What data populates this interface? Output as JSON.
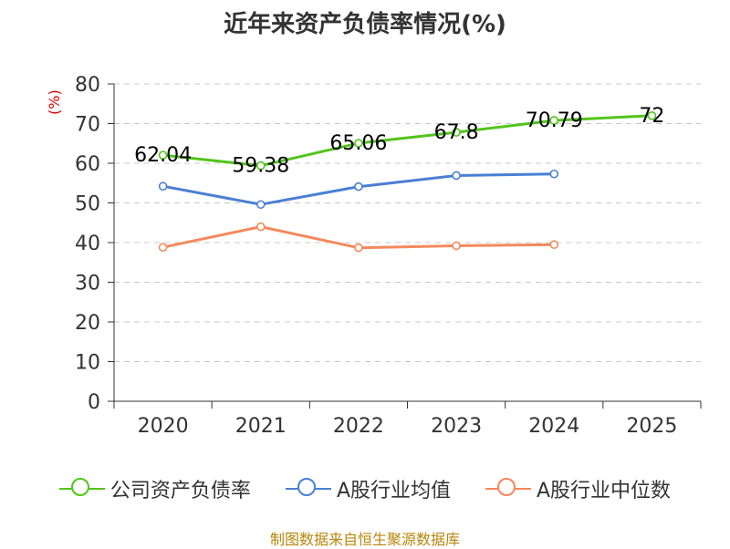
{
  "chart_data": {
    "type": "line",
    "title": "近年来资产负债率情况(%)",
    "ylabel": "(%)",
    "xlabel": "",
    "categories": [
      "2020",
      "2021",
      "2022",
      "2023",
      "2024",
      "2025"
    ],
    "ylim": [
      0,
      80
    ],
    "yticks": [
      0,
      10,
      20,
      30,
      40,
      50,
      60,
      70,
      80
    ],
    "grid": true,
    "legend_position": "bottom",
    "series": [
      {
        "name": "公司资产负债率",
        "color": "#52c41a",
        "values": [
          62.04,
          59.38,
          65.06,
          67.8,
          70.79,
          72
        ],
        "labels": [
          "62.04",
          "59.38",
          "65.06",
          "67.8",
          "70.79",
          "72"
        ]
      },
      {
        "name": "A股行业均值",
        "color": "#4a7fd4",
        "values": [
          54.2,
          49.6,
          54.1,
          56.9,
          57.3,
          null
        ]
      },
      {
        "name": "A股行业中位数",
        "color": "#f4895c",
        "values": [
          38.8,
          44.0,
          38.7,
          39.2,
          39.5,
          null
        ]
      }
    ]
  },
  "footer": "制图数据来自恒生聚源数据库"
}
